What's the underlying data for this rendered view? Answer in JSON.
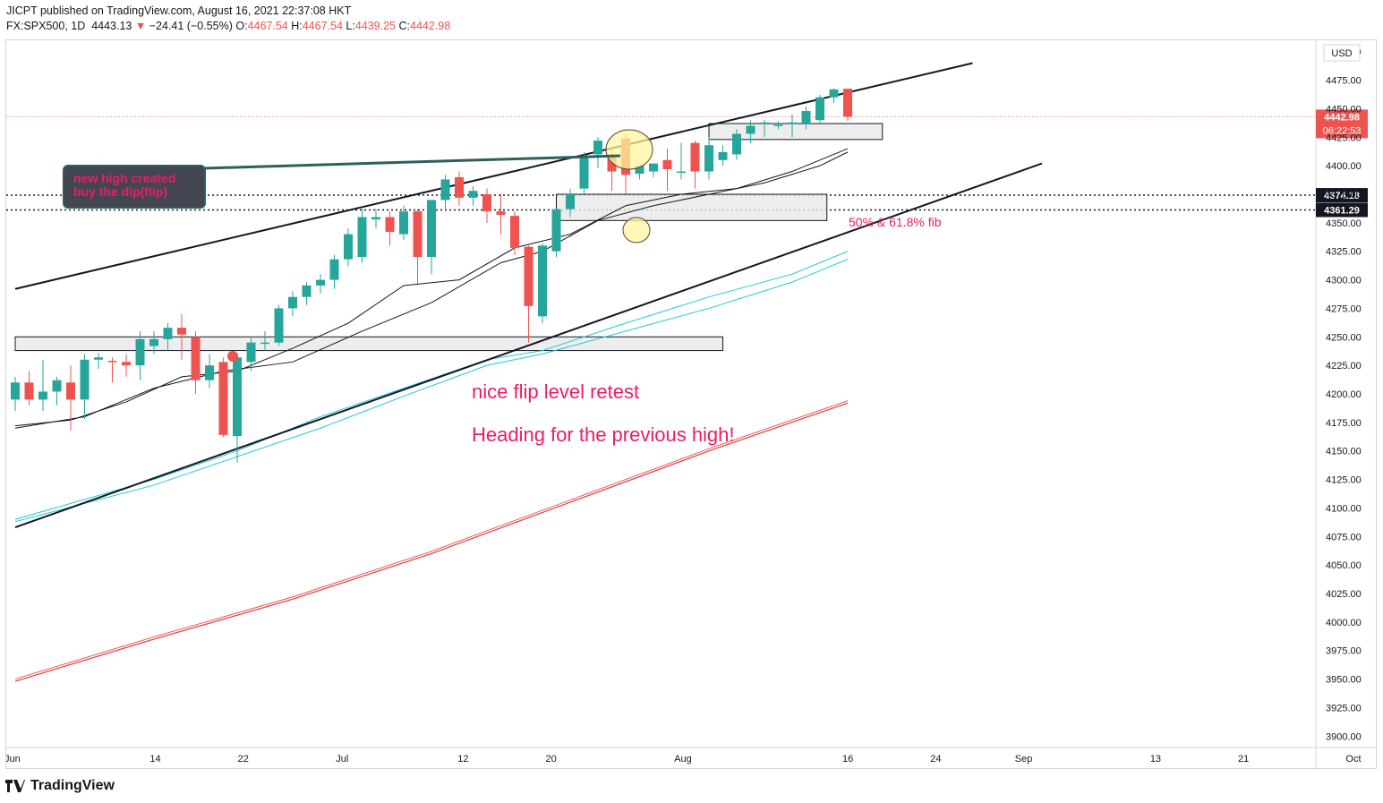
{
  "header": {
    "published": "JICPT published on TradingView.com, August 16, 2021 22:37:08 HKT",
    "symbol": "FX:SPX500, 1D",
    "last": "4443.13",
    "change_arrow": "▼",
    "change": "−24.41 (−0.55%)",
    "o_label": "O:",
    "o": "4467.54",
    "h_label": "H:",
    "h": "4467.54",
    "l_label": "L:",
    "l": "4439.25",
    "c_label": "C:",
    "c": "4442.98"
  },
  "brand": "TradingView",
  "currency": "USD",
  "price_tag": {
    "price": "4442.98",
    "countdown": "06:22:53"
  },
  "level_tags": [
    "4374.18",
    "4361.29"
  ],
  "annotations": {
    "callout_line1": "new high created",
    "callout_line2": "buy the dip(flip)",
    "fib_label": "50% & 61.8% fib",
    "retest": "nice flip level retest",
    "target": "Heading for the previous high!"
  },
  "colors": {
    "up": "#26a69a",
    "down": "#ef5350",
    "accent_text": "#e91e63",
    "callout_bg": "#434651",
    "ma_fast": "#131722",
    "ma_mid": "#26c6da",
    "ma_slow": "#e53935"
  },
  "chart_data": {
    "type": "candlestick",
    "ylim": [
      3890,
      4510
    ],
    "y_ticks": [
      3900,
      3925,
      3950,
      3975,
      4000,
      4025,
      4050,
      4075,
      4100,
      4125,
      4150,
      4175,
      4200,
      4225,
      4250,
      4275,
      4300,
      4325,
      4350,
      4375,
      4400,
      4425,
      4450,
      4475,
      4500
    ],
    "y_tick_labels": [
      "3900.00",
      "3925.00",
      "3950.00",
      "3975.00",
      "4000.00",
      "4025.00",
      "4050.00",
      "4075.00",
      "4100.00",
      "4125.00",
      "4150.00",
      "4175.00",
      "4200.00",
      "4225.00",
      "4250.00",
      "4275.00",
      "4300.00",
      "4325.00",
      "4350.00",
      "4375.00",
      "4400.00",
      "4425.00",
      "4450.00",
      "4475.00",
      "4500.00"
    ],
    "x_labels": [
      "Jun",
      "14",
      "22",
      "Jul",
      "12",
      "20",
      "Aug",
      "16",
      "24",
      "Sep",
      "13",
      "21",
      "Oct"
    ],
    "x_label_dates": [
      "2021-06-01",
      "2021-06-14",
      "2021-06-22",
      "2021-07-01",
      "2021-07-12",
      "2021-07-20",
      "2021-08-01",
      "2021-08-16",
      "2021-08-24",
      "2021-09-01",
      "2021-09-13",
      "2021-09-21",
      "2021-10-01"
    ],
    "candles": [
      {
        "o": 4195,
        "h": 4215,
        "l": 4185,
        "c": 4210
      },
      {
        "o": 4210,
        "h": 4220,
        "l": 4190,
        "c": 4195
      },
      {
        "o": 4195,
        "h": 4230,
        "l": 4185,
        "c": 4202
      },
      {
        "o": 4202,
        "h": 4215,
        "l": 4190,
        "c": 4212
      },
      {
        "o": 4210,
        "h": 4225,
        "l": 4168,
        "c": 4195
      },
      {
        "o": 4195,
        "h": 4235,
        "l": 4178,
        "c": 4230
      },
      {
        "o": 4230,
        "h": 4236,
        "l": 4222,
        "c": 4232
      },
      {
        "o": 4229,
        "h": 4232,
        "l": 4210,
        "c": 4228
      },
      {
        "o": 4228,
        "h": 4235,
        "l": 4215,
        "c": 4225
      },
      {
        "o": 4225,
        "h": 4255,
        "l": 4212,
        "c": 4248
      },
      {
        "o": 4242,
        "h": 4255,
        "l": 4235,
        "c": 4248
      },
      {
        "o": 4248,
        "h": 4262,
        "l": 4238,
        "c": 4258
      },
      {
        "o": 4258,
        "h": 4270,
        "l": 4230,
        "c": 4252
      },
      {
        "o": 4250,
        "h": 4255,
        "l": 4200,
        "c": 4212
      },
      {
        "o": 4212,
        "h": 4235,
        "l": 4205,
        "c": 4225
      },
      {
        "o": 4228,
        "h": 4232,
        "l": 4162,
        "c": 4164
      },
      {
        "o": 4163,
        "h": 4236,
        "l": 4140,
        "c": 4232
      },
      {
        "o": 4228,
        "h": 4250,
        "l": 4220,
        "c": 4245
      },
      {
        "o": 4245,
        "h": 4255,
        "l": 4238,
        "c": 4245
      },
      {
        "o": 4245,
        "h": 4278,
        "l": 4242,
        "c": 4275
      },
      {
        "o": 4275,
        "h": 4290,
        "l": 4268,
        "c": 4285
      },
      {
        "o": 4285,
        "h": 4298,
        "l": 4278,
        "c": 4295
      },
      {
        "o": 4295,
        "h": 4305,
        "l": 4288,
        "c": 4300
      },
      {
        "o": 4300,
        "h": 4322,
        "l": 4292,
        "c": 4318
      },
      {
        "o": 4318,
        "h": 4345,
        "l": 4312,
        "c": 4340
      },
      {
        "o": 4320,
        "h": 4362,
        "l": 4315,
        "c": 4355
      },
      {
        "o": 4353,
        "h": 4362,
        "l": 4345,
        "c": 4355
      },
      {
        "o": 4355,
        "h": 4360,
        "l": 4330,
        "c": 4342
      },
      {
        "o": 4340,
        "h": 4365,
        "l": 4335,
        "c": 4360
      },
      {
        "o": 4360,
        "h": 4362,
        "l": 4295,
        "c": 4320
      },
      {
        "o": 4320,
        "h": 4370,
        "l": 4305,
        "c": 4370
      },
      {
        "o": 4370,
        "h": 4392,
        "l": 4360,
        "c": 4388
      },
      {
        "o": 4390,
        "h": 4395,
        "l": 4365,
        "c": 4372
      },
      {
        "o": 4372,
        "h": 4382,
        "l": 4365,
        "c": 4378
      },
      {
        "o": 4375,
        "h": 4380,
        "l": 4350,
        "c": 4360
      },
      {
        "o": 4360,
        "h": 4375,
        "l": 4340,
        "c": 4357
      },
      {
        "o": 4356,
        "h": 4360,
        "l": 4322,
        "c": 4328
      },
      {
        "o": 4329,
        "h": 4330,
        "l": 4245,
        "c": 4277
      },
      {
        "o": 4268,
        "h": 4332,
        "l": 4262,
        "c": 4330
      },
      {
        "o": 4325,
        "h": 4362,
        "l": 4320,
        "c": 4362
      },
      {
        "o": 4362,
        "h": 4380,
        "l": 4355,
        "c": 4375
      },
      {
        "o": 4380,
        "h": 4412,
        "l": 4375,
        "c": 4408
      },
      {
        "o": 4410,
        "h": 4425,
        "l": 4398,
        "c": 4422
      },
      {
        "o": 4410,
        "h": 4415,
        "l": 4378,
        "c": 4395
      },
      {
        "o": 4424,
        "h": 4428,
        "l": 4375,
        "c": 4392
      },
      {
        "o": 4393,
        "h": 4400,
        "l": 4388,
        "c": 4400
      },
      {
        "o": 4395,
        "h": 4402,
        "l": 4390,
        "c": 4402
      },
      {
        "o": 4405,
        "h": 4415,
        "l": 4378,
        "c": 4397
      },
      {
        "o": 4394,
        "h": 4420,
        "l": 4388,
        "c": 4395
      },
      {
        "o": 4420,
        "h": 4422,
        "l": 4380,
        "c": 4395
      },
      {
        "o": 4395,
        "h": 4425,
        "l": 4388,
        "c": 4418
      },
      {
        "o": 4405,
        "h": 4418,
        "l": 4400,
        "c": 4412
      },
      {
        "o": 4410,
        "h": 4432,
        "l": 4405,
        "c": 4428
      },
      {
        "o": 4428,
        "h": 4440,
        "l": 4420,
        "c": 4435
      },
      {
        "o": 4437,
        "h": 4440,
        "l": 4425,
        "c": 4438
      },
      {
        "o": 4436,
        "h": 4439,
        "l": 4432,
        "c": 4436
      },
      {
        "o": 4437,
        "h": 4445,
        "l": 4425,
        "c": 4438
      },
      {
        "o": 4437,
        "h": 4452,
        "l": 4432,
        "c": 4448
      },
      {
        "o": 4440,
        "h": 4462,
        "l": 4438,
        "c": 4460
      },
      {
        "o": 4460,
        "h": 4468,
        "l": 4455,
        "c": 4467
      },
      {
        "o": 4467.54,
        "h": 4467.54,
        "l": 4439.25,
        "c": 4442.98
      }
    ],
    "moving_averages": [
      {
        "points": [
          [
            0,
            4172
          ],
          [
            4,
            4177
          ],
          [
            8,
            4193
          ],
          [
            12,
            4215
          ],
          [
            16,
            4220
          ],
          [
            20,
            4240
          ],
          [
            24,
            4262
          ],
          [
            28,
            4295
          ],
          [
            32,
            4300
          ],
          [
            36,
            4328
          ],
          [
            40,
            4340
          ],
          [
            44,
            4365
          ],
          [
            48,
            4375
          ],
          [
            52,
            4380
          ],
          [
            56,
            4395
          ],
          [
            60,
            4415
          ]
        ]
      },
      {
        "points": [
          [
            0,
            4170
          ],
          [
            5,
            4180
          ],
          [
            10,
            4205
          ],
          [
            15,
            4220
          ],
          [
            20,
            4228
          ],
          [
            25,
            4255
          ],
          [
            30,
            4280
          ],
          [
            35,
            4315
          ],
          [
            38,
            4325
          ],
          [
            42,
            4352
          ],
          [
            46,
            4365
          ],
          [
            50,
            4375
          ],
          [
            54,
            4385
          ],
          [
            58,
            4400
          ],
          [
            60,
            4412
          ]
        ]
      },
      {
        "points": [
          [
            0,
            4090
          ],
          [
            10,
            4125
          ],
          [
            16,
            4150
          ],
          [
            22,
            4180
          ],
          [
            28,
            4205
          ],
          [
            34,
            4230
          ],
          [
            38,
            4238
          ],
          [
            44,
            4262
          ],
          [
            50,
            4285
          ],
          [
            56,
            4305
          ],
          [
            60,
            4325
          ]
        ]
      },
      {
        "points": [
          [
            0,
            4088
          ],
          [
            10,
            4120
          ],
          [
            16,
            4145
          ],
          [
            22,
            4170
          ],
          [
            28,
            4198
          ],
          [
            34,
            4225
          ],
          [
            38,
            4235
          ],
          [
            44,
            4255
          ],
          [
            50,
            4275
          ],
          [
            56,
            4298
          ],
          [
            60,
            4318
          ]
        ]
      },
      {
        "points": [
          [
            0,
            3948
          ],
          [
            10,
            3985
          ],
          [
            20,
            4020
          ],
          [
            30,
            4060
          ],
          [
            40,
            4105
          ],
          [
            50,
            4150
          ],
          [
            60,
            4192
          ]
        ]
      },
      {
        "points": [
          [
            0,
            3950
          ],
          [
            10,
            3987
          ],
          [
            20,
            4022
          ],
          [
            30,
            4062
          ],
          [
            40,
            4107
          ],
          [
            50,
            4152
          ],
          [
            60,
            4194
          ]
        ]
      }
    ],
    "channel": [
      {
        "from": [
          0,
          4292
        ],
        "to": [
          69,
          4490
        ]
      },
      {
        "from": [
          0,
          4083
        ],
        "to": [
          74,
          4402
        ]
      }
    ],
    "zones": [
      {
        "from": 0,
        "to": 51,
        "low": 4238,
        "high": 4250
      },
      {
        "from": 39,
        "to": 58.5,
        "low": 4352,
        "high": 4375
      },
      {
        "from": 50,
        "to": 62.5,
        "low": 4423,
        "high": 4437
      }
    ],
    "horizontal_levels": [
      4374.18,
      4361.29
    ],
    "current_price": 4442.98
  }
}
